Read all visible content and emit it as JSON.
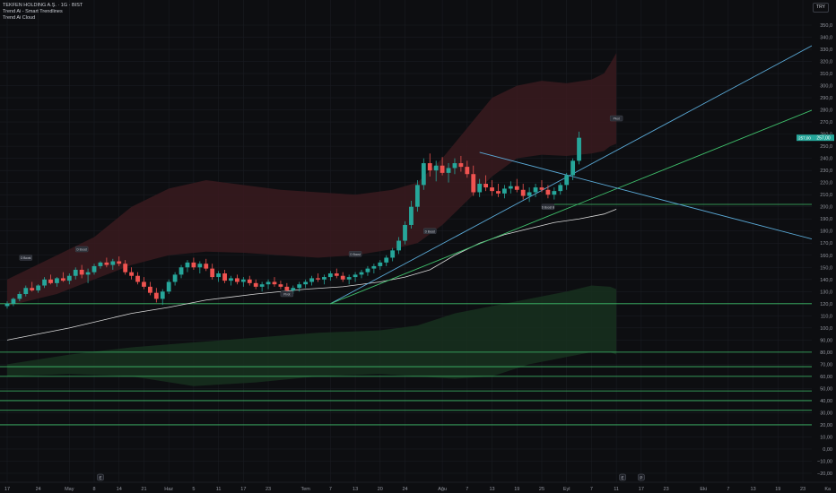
{
  "header": {
    "title": "TEKFEN HOLDING A.Ş. · 1G · BIST",
    "indicators": [
      "Trend Ai - Smart Trendlines",
      "Trend Ai Cloud"
    ],
    "currency": "TRY"
  },
  "colors": {
    "background": "#0d0e11",
    "up": "#26a69a",
    "down": "#ef5350",
    "grid": "#1a1c22",
    "cloud_red": "#3a1a1f",
    "cloud_green": "#17301f",
    "trend_blue": "#5aa9d6",
    "trend_green": "#3fbf6b",
    "level_green": "#3fbf6b",
    "sma": "#d9d9d9"
  },
  "chart_data": {
    "type": "candlestick",
    "title": "TEKFEN HOLDING A.Ş. · 1G · BIST",
    "ylim": [
      -20,
      350
    ],
    "y_ticks": [
      -20,
      -10,
      0,
      10,
      20,
      30,
      40,
      50,
      60,
      70,
      80,
      90,
      100,
      110,
      120,
      130,
      140,
      150,
      160,
      170,
      180,
      190,
      200,
      210,
      220,
      230,
      240,
      250,
      260,
      270,
      280,
      290,
      300,
      310,
      320,
      330,
      340,
      350
    ],
    "y_tick_labels": [
      "−20,00",
      "−10,00",
      "0,00",
      "10,00",
      "20,00",
      "30,00",
      "40,00",
      "50,00",
      "60,00",
      "70,00",
      "80,00",
      "90,00",
      "100,0",
      "110,0",
      "120,0",
      "130,0",
      "140,0",
      "150,0",
      "160,0",
      "170,0",
      "180,0",
      "190,0",
      "200,0",
      "210,0",
      "220,0",
      "230,0",
      "240,0",
      "250,0",
      "260,0",
      "270,0",
      "280,0",
      "290,0",
      "300,0",
      "310,0",
      "320,0",
      "330,0",
      "340,0",
      "350,0"
    ],
    "x_ticks": [
      {
        "bar": 0,
        "label": "17"
      },
      {
        "bar": 5,
        "label": "24"
      },
      {
        "bar": 10,
        "label": "May"
      },
      {
        "bar": 14,
        "label": "8"
      },
      {
        "bar": 18,
        "label": "14"
      },
      {
        "bar": 22,
        "label": "21"
      },
      {
        "bar": 26,
        "label": "Haz"
      },
      {
        "bar": 30,
        "label": "5"
      },
      {
        "bar": 34,
        "label": "11"
      },
      {
        "bar": 38,
        "label": "17"
      },
      {
        "bar": 42,
        "label": "23"
      },
      {
        "bar": 48,
        "label": "Tem"
      },
      {
        "bar": 52,
        "label": "7"
      },
      {
        "bar": 56,
        "label": "13"
      },
      {
        "bar": 60,
        "label": "20"
      },
      {
        "bar": 64,
        "label": "24"
      },
      {
        "bar": 70,
        "label": "Ağu"
      },
      {
        "bar": 74,
        "label": "7"
      },
      {
        "bar": 78,
        "label": "13"
      },
      {
        "bar": 82,
        "label": "19"
      },
      {
        "bar": 86,
        "label": "25"
      },
      {
        "bar": 90,
        "label": "Eyl"
      },
      {
        "bar": 94,
        "label": "7"
      },
      {
        "bar": 98,
        "label": "11"
      },
      {
        "bar": 102,
        "label": "17"
      },
      {
        "bar": 106,
        "label": "23"
      },
      {
        "bar": 112,
        "label": "Eki"
      },
      {
        "bar": 116,
        "label": "7"
      },
      {
        "bar": 120,
        "label": "13"
      },
      {
        "bar": 124,
        "label": "19"
      },
      {
        "bar": 128,
        "label": "23"
      },
      {
        "bar": 132,
        "label": "Ka"
      }
    ],
    "x_markers": [
      {
        "bar": 15,
        "label": "E"
      },
      {
        "bar": 99,
        "label": "E"
      },
      {
        "bar": 102,
        "label": "P"
      }
    ],
    "candles": [
      [
        118,
        122,
        116,
        120
      ],
      [
        120,
        125,
        118,
        124
      ],
      [
        124,
        130,
        122,
        128
      ],
      [
        128,
        135,
        126,
        133
      ],
      [
        133,
        138,
        130,
        131
      ],
      [
        131,
        136,
        129,
        135
      ],
      [
        135,
        142,
        133,
        140
      ],
      [
        140,
        144,
        136,
        137
      ],
      [
        137,
        142,
        134,
        141
      ],
      [
        141,
        146,
        138,
        139
      ],
      [
        139,
        145,
        136,
        143
      ],
      [
        143,
        150,
        140,
        148
      ],
      [
        148,
        152,
        141,
        144
      ],
      [
        144,
        149,
        137,
        146
      ],
      [
        146,
        153,
        144,
        151
      ],
      [
        151,
        155,
        149,
        154
      ],
      [
        154,
        158,
        150,
        152
      ],
      [
        152,
        157,
        148,
        155
      ],
      [
        155,
        159,
        151,
        153
      ],
      [
        153,
        156,
        144,
        146
      ],
      [
        146,
        150,
        140,
        143
      ],
      [
        143,
        146,
        136,
        138
      ],
      [
        138,
        142,
        132,
        134
      ],
      [
        134,
        138,
        127,
        129
      ],
      [
        129,
        133,
        121,
        124
      ],
      [
        124,
        132,
        119,
        130
      ],
      [
        130,
        140,
        128,
        138
      ],
      [
        138,
        146,
        135,
        144
      ],
      [
        144,
        152,
        141,
        150
      ],
      [
        150,
        156,
        146,
        154
      ],
      [
        154,
        158,
        148,
        150
      ],
      [
        150,
        155,
        145,
        153
      ],
      [
        153,
        157,
        147,
        149
      ],
      [
        149,
        153,
        140,
        142
      ],
      [
        142,
        147,
        138,
        145
      ],
      [
        145,
        148,
        137,
        139
      ],
      [
        139,
        143,
        135,
        141
      ],
      [
        141,
        144,
        136,
        138
      ],
      [
        138,
        142,
        134,
        140
      ],
      [
        140,
        143,
        135,
        137
      ],
      [
        137,
        140,
        132,
        134
      ],
      [
        134,
        138,
        130,
        136
      ],
      [
        136,
        140,
        132,
        138
      ],
      [
        138,
        142,
        134,
        136
      ],
      [
        136,
        139,
        132,
        134
      ],
      [
        134,
        137,
        129,
        131
      ],
      [
        131,
        135,
        128,
        133
      ],
      [
        133,
        138,
        130,
        136
      ],
      [
        136,
        140,
        133,
        138
      ],
      [
        138,
        143,
        135,
        141
      ],
      [
        141,
        145,
        138,
        140
      ],
      [
        140,
        144,
        136,
        142
      ],
      [
        142,
        147,
        139,
        145
      ],
      [
        145,
        149,
        141,
        143
      ],
      [
        143,
        146,
        138,
        140
      ],
      [
        140,
        144,
        136,
        142
      ],
      [
        142,
        146,
        138,
        144
      ],
      [
        144,
        148,
        141,
        146
      ],
      [
        146,
        151,
        143,
        149
      ],
      [
        149,
        153,
        145,
        151
      ],
      [
        151,
        156,
        148,
        154
      ],
      [
        154,
        160,
        151,
        158
      ],
      [
        158,
        166,
        155,
        164
      ],
      [
        164,
        175,
        161,
        172
      ],
      [
        172,
        188,
        169,
        185
      ],
      [
        185,
        205,
        182,
        200
      ],
      [
        200,
        222,
        196,
        218
      ],
      [
        218,
        240,
        214,
        236
      ],
      [
        236,
        244,
        225,
        230
      ],
      [
        230,
        238,
        221,
        234
      ],
      [
        234,
        241,
        226,
        228
      ],
      [
        228,
        236,
        220,
        232
      ],
      [
        232,
        240,
        227,
        236
      ],
      [
        236,
        242,
        229,
        233
      ],
      [
        233,
        238,
        224,
        227
      ],
      [
        227,
        234,
        209,
        212
      ],
      [
        212,
        223,
        208,
        219
      ],
      [
        219,
        226,
        213,
        216
      ],
      [
        216,
        222,
        209,
        213
      ],
      [
        213,
        219,
        208,
        211
      ],
      [
        211,
        218,
        207,
        215
      ],
      [
        215,
        221,
        211,
        217
      ],
      [
        217,
        223,
        212,
        214
      ],
      [
        214,
        219,
        206,
        209
      ],
      [
        209,
        216,
        204,
        212
      ],
      [
        212,
        219,
        208,
        216
      ],
      [
        216,
        222,
        212,
        214
      ],
      [
        214,
        218,
        207,
        210
      ],
      [
        210,
        216,
        206,
        213
      ],
      [
        213,
        220,
        210,
        218
      ],
      [
        218,
        228,
        214,
        226
      ],
      [
        226,
        240,
        222,
        238
      ],
      [
        238,
        262,
        235,
        257
      ]
    ],
    "sma": [
      [
        0,
        90
      ],
      [
        10,
        100
      ],
      [
        20,
        112
      ],
      [
        26,
        117
      ],
      [
        32,
        123
      ],
      [
        40,
        128
      ],
      [
        48,
        132
      ],
      [
        54,
        134
      ],
      [
        60,
        138
      ],
      [
        64,
        142
      ],
      [
        68,
        148
      ],
      [
        72,
        160
      ],
      [
        76,
        170
      ],
      [
        80,
        177
      ],
      [
        84,
        182
      ],
      [
        88,
        187
      ],
      [
        92,
        190
      ],
      [
        96,
        194
      ],
      [
        98,
        198
      ]
    ],
    "cloud_upper": [
      [
        0,
        140
      ],
      [
        8,
        160
      ],
      [
        14,
        175
      ],
      [
        20,
        200
      ],
      [
        26,
        215
      ],
      [
        32,
        222
      ],
      [
        38,
        218
      ],
      [
        44,
        214
      ],
      [
        50,
        212
      ],
      [
        56,
        210
      ],
      [
        62,
        214
      ],
      [
        66,
        220
      ],
      [
        70,
        240
      ],
      [
        74,
        265
      ],
      [
        78,
        290
      ],
      [
        82,
        300
      ],
      [
        86,
        304
      ],
      [
        90,
        302
      ],
      [
        94,
        305
      ],
      [
        96,
        310
      ],
      [
        97,
        318
      ],
      [
        98,
        327
      ]
    ],
    "cloud_lower": [
      [
        0,
        118
      ],
      [
        8,
        128
      ],
      [
        14,
        140
      ],
      [
        20,
        152
      ],
      [
        26,
        160
      ],
      [
        32,
        163
      ],
      [
        38,
        162
      ],
      [
        44,
        160
      ],
      [
        50,
        158
      ],
      [
        56,
        160
      ],
      [
        62,
        165
      ],
      [
        66,
        170
      ],
      [
        70,
        185
      ],
      [
        74,
        205
      ],
      [
        78,
        225
      ],
      [
        82,
        240
      ],
      [
        86,
        243
      ],
      [
        90,
        242
      ],
      [
        94,
        244
      ],
      [
        96,
        246
      ],
      [
        97,
        250
      ],
      [
        98,
        252
      ]
    ],
    "green_cloud_upper": [
      [
        0,
        70
      ],
      [
        10,
        78
      ],
      [
        20,
        84
      ],
      [
        30,
        88
      ],
      [
        40,
        92
      ],
      [
        50,
        96
      ],
      [
        60,
        98
      ],
      [
        66,
        102
      ],
      [
        72,
        112
      ],
      [
        78,
        118
      ],
      [
        84,
        124
      ],
      [
        90,
        130
      ],
      [
        94,
        135
      ],
      [
        97,
        134
      ],
      [
        98,
        132
      ]
    ],
    "green_cloud_lower": [
      [
        0,
        60
      ],
      [
        10,
        62
      ],
      [
        20,
        60
      ],
      [
        30,
        52
      ],
      [
        40,
        55
      ],
      [
        50,
        60
      ],
      [
        60,
        62
      ],
      [
        66,
        60
      ],
      [
        72,
        58
      ],
      [
        78,
        60
      ],
      [
        84,
        70
      ],
      [
        90,
        76
      ],
      [
        94,
        80
      ],
      [
        97,
        80
      ],
      [
        98,
        78
      ]
    ],
    "trendlines": [
      {
        "color": "blue",
        "points": [
          [
            52,
            120
          ],
          [
            132,
            340
          ]
        ]
      },
      {
        "color": "green",
        "points": [
          [
            52,
            120
          ],
          [
            132,
            285
          ]
        ]
      },
      {
        "color": "blue",
        "points": [
          [
            76,
            245
          ],
          [
            132,
            170
          ]
        ]
      }
    ],
    "horizontal_levels": [
      202,
      120,
      80,
      68,
      60,
      48,
      40,
      32,
      20
    ],
    "labels": [
      {
        "bar": 3,
        "price": 158,
        "text": "D Boost"
      },
      {
        "bar": 12,
        "price": 165,
        "text": "D Boost"
      },
      {
        "bar": 56,
        "price": 161,
        "text": "D Boost"
      },
      {
        "bar": 68,
        "price": 180,
        "text": "D Boost"
      },
      {
        "bar": 45,
        "price": 128,
        "text": "Pivot"
      },
      {
        "bar": 87,
        "price": 200,
        "text": "D Boost B"
      },
      {
        "bar": 98,
        "price": 273,
        "text": "Pivot"
      }
    ],
    "last_price": 257,
    "last_price_label": "257,00"
  }
}
